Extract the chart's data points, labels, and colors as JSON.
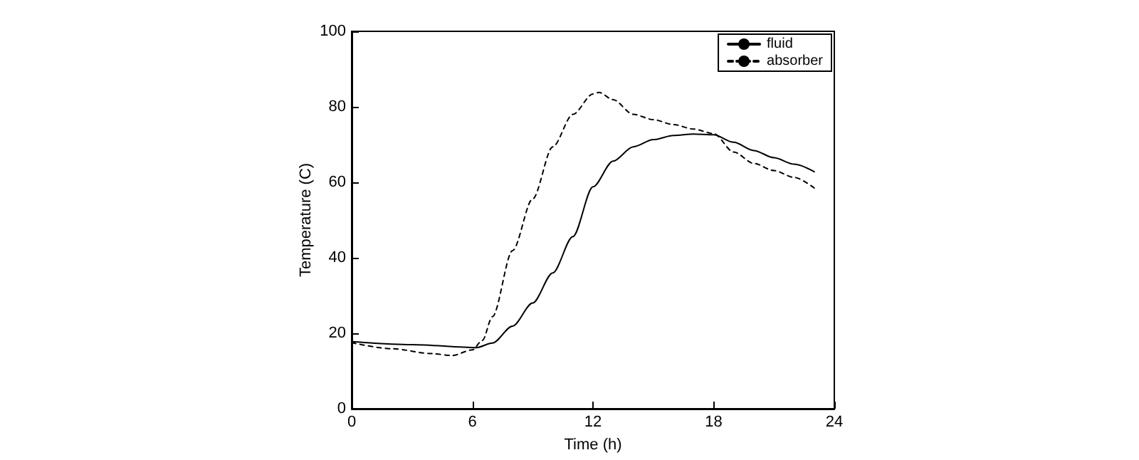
{
  "chart_data": {
    "type": "line",
    "xlabel": "Time (h)",
    "ylabel": "Temperature (C)",
    "xlim": [
      0,
      24
    ],
    "xticks": [
      0,
      6,
      12,
      18,
      24
    ],
    "ylim": [
      0,
      100
    ],
    "yticks": [
      0,
      20,
      40,
      60,
      80,
      100
    ],
    "grid": false,
    "legend": "top right",
    "marker": "none",
    "series": [
      {
        "name": "fluid",
        "color": "#000000",
        "line_style": "solid",
        "x": [
          0,
          3,
          6.2,
          7,
          8,
          9,
          10,
          11,
          12,
          13,
          14,
          15,
          16,
          17,
          18,
          19,
          20,
          21,
          22,
          23
        ],
        "values": [
          17.8,
          17,
          16.2,
          17.4,
          21.9,
          28,
          36,
          45.6,
          58.8,
          65.6,
          69.4,
          71.3,
          72.4,
          72.8,
          72.6,
          70.6,
          68.4,
          66.5,
          64.8,
          62.8
        ]
      },
      {
        "name": "absorber",
        "color": "#000000",
        "line_style": "dashed",
        "x": [
          0,
          2,
          4,
          5,
          6,
          6.5,
          7,
          8,
          9,
          10,
          11,
          12,
          12.3,
          13,
          14,
          15,
          16,
          17,
          18,
          19,
          20,
          21,
          22,
          23
        ],
        "values": [
          17.5,
          15.9,
          14.6,
          14.1,
          15.6,
          18.1,
          24.4,
          41.9,
          55.6,
          69.4,
          78,
          83.4,
          83.8,
          81.9,
          78,
          76.6,
          75.3,
          74.1,
          72.9,
          68,
          65,
          63.1,
          61.3,
          58.5
        ]
      }
    ]
  }
}
